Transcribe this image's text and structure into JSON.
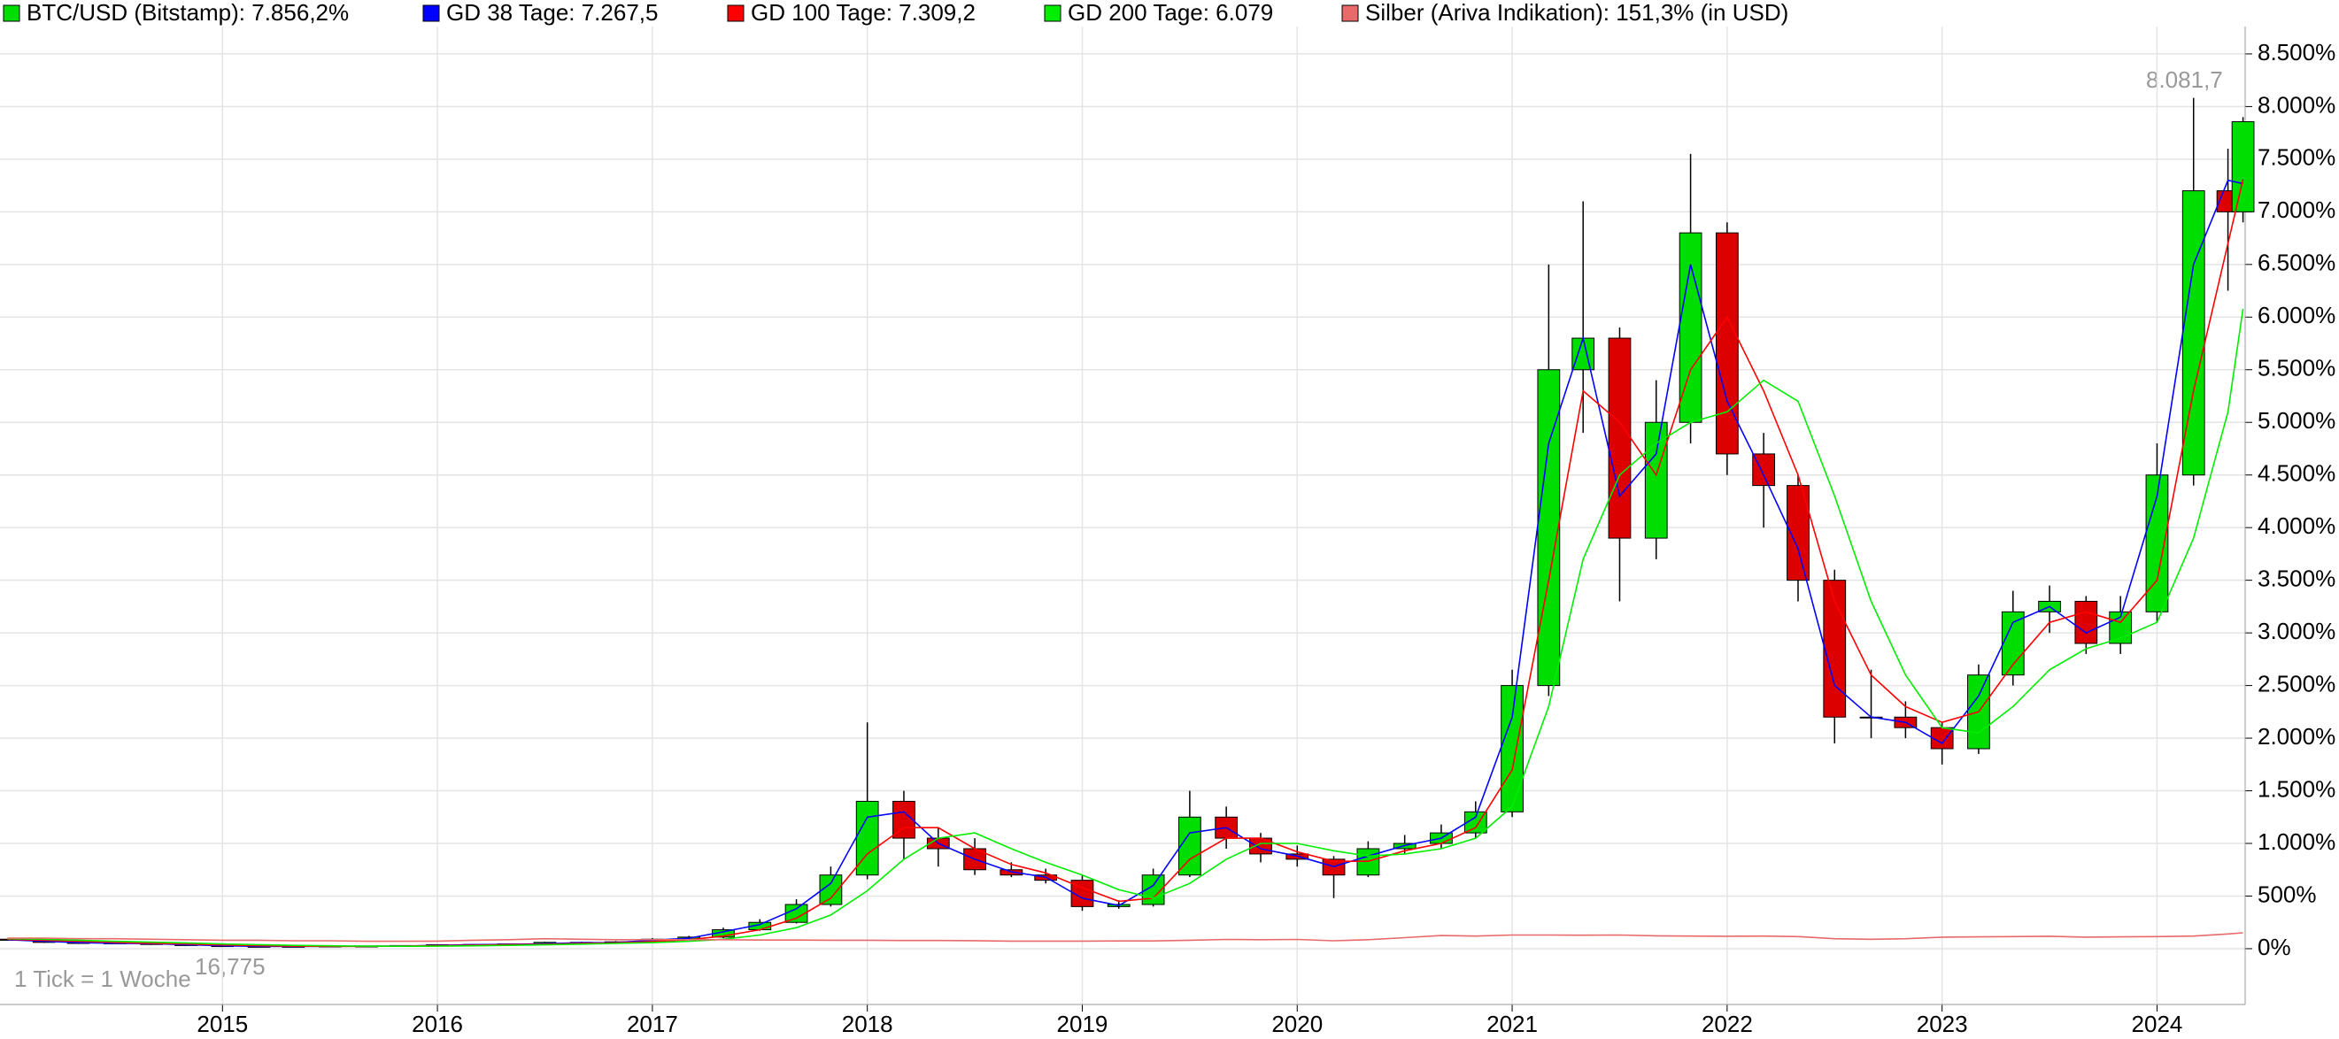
{
  "chart_data": {
    "type": "candlestick",
    "annotations": [
      "8.081,7",
      "16,775",
      "1 Tick = 1 Woche"
    ],
    "x": [
      2014,
      2014.17,
      2014.33,
      2014.5,
      2014.67,
      2014.83,
      2015,
      2015.17,
      2015.33,
      2015.5,
      2015.67,
      2015.83,
      2016,
      2016.17,
      2016.33,
      2016.5,
      2016.67,
      2016.83,
      2017,
      2017.17,
      2017.33,
      2017.5,
      2017.67,
      2017.83,
      2018,
      2018.17,
      2018.33,
      2018.5,
      2018.67,
      2018.83,
      2019,
      2019.17,
      2019.33,
      2019.5,
      2019.67,
      2019.83,
      2020,
      2020.17,
      2020.33,
      2020.5,
      2020.67,
      2020.83,
      2021,
      2021.17,
      2021.33,
      2021.5,
      2021.67,
      2021.83,
      2022,
      2022.17,
      2022.33,
      2022.5,
      2022.67,
      2022.83,
      2023,
      2023.17,
      2023.33,
      2023.5,
      2023.67,
      2023.83,
      2024,
      2024.17,
      2024.33,
      2024.4
    ],
    "candles": {
      "name": "BTC/USD (Bitstamp): 7.856,2%",
      "color": "#00dd00",
      "down_color": "#dd0000",
      "open": [
        90,
        80,
        60,
        50,
        55,
        40,
        30,
        20,
        22,
        20,
        25,
        22,
        30,
        38,
        40,
        45,
        60,
        55,
        65,
        90,
        110,
        180,
        250,
        420,
        700,
        1400,
        1050,
        950,
        750,
        700,
        650,
        400,
        420,
        700,
        1250,
        1050,
        900,
        850,
        700,
        950,
        1000,
        1100,
        1300,
        2500,
        5500,
        5800,
        3900,
        5000,
        6800,
        4700,
        4400,
        3500,
        2200,
        2200,
        2100,
        1900,
        2600,
        3200,
        3300,
        2900,
        3200,
        4500,
        7200,
        7000
      ],
      "high": [
        95,
        88,
        66,
        60,
        60,
        44,
        33,
        24,
        24,
        28,
        28,
        33,
        42,
        44,
        50,
        66,
        66,
        72,
        100,
        122,
        200,
        280,
        470,
        780,
        2150,
        1500,
        1150,
        1050,
        820,
        760,
        700,
        460,
        760,
        1500,
        1350,
        1100,
        980,
        880,
        1020,
        1080,
        1180,
        1400,
        2650,
        6500,
        7100,
        5900,
        5400,
        7550,
        6900,
        4900,
        4500,
        3600,
        2650,
        2350,
        2150,
        2700,
        3400,
        3450,
        3350,
        3350,
        4800,
        8081.7,
        7600,
        7900
      ],
      "low": [
        75,
        55,
        45,
        45,
        36,
        27,
        17,
        18,
        18,
        19,
        20,
        21,
        28,
        36,
        38,
        43,
        52,
        52,
        62,
        85,
        100,
        170,
        240,
        400,
        660,
        850,
        780,
        700,
        680,
        620,
        360,
        380,
        400,
        680,
        950,
        820,
        780,
        480,
        680,
        900,
        950,
        1050,
        1250,
        2400,
        4900,
        3300,
        3700,
        4800,
        4500,
        4000,
        3300,
        1950,
        2000,
        2000,
        1750,
        1850,
        2500,
        3000,
        2800,
        2800,
        3100,
        4400,
        6250,
        6900
      ],
      "close": [
        80,
        60,
        50,
        55,
        40,
        30,
        20,
        22,
        20,
        25,
        22,
        30,
        38,
        40,
        45,
        60,
        55,
        65,
        90,
        110,
        180,
        250,
        420,
        700,
        1400,
        1050,
        950,
        750,
        700,
        650,
        400,
        420,
        700,
        1250,
        1050,
        900,
        850,
        700,
        950,
        1000,
        1100,
        1300,
        2500,
        5500,
        5800,
        3900,
        5000,
        6800,
        4700,
        4400,
        3500,
        2200,
        2200,
        2100,
        1900,
        2600,
        3200,
        3300,
        2900,
        3200,
        4500,
        7200,
        7000,
        7856.2
      ]
    },
    "series": [
      {
        "name": "GD 38 Tage: 7.267,5",
        "color": "#0000ff",
        "values": [
          85,
          70,
          58,
          52,
          48,
          38,
          28,
          22,
          21,
          22,
          23,
          25,
          32,
          38,
          41,
          47,
          57,
          58,
          80,
          100,
          160,
          230,
          380,
          620,
          1250,
          1300,
          1000,
          850,
          730,
          680,
          480,
          410,
          600,
          1100,
          1150,
          950,
          880,
          780,
          880,
          980,
          1050,
          1250,
          2200,
          4800,
          5800,
          4300,
          4700,
          6500,
          5200,
          4500,
          3800,
          2500,
          2200,
          2150,
          1950,
          2400,
          3100,
          3250,
          3000,
          3150,
          4300,
          6500,
          7300,
          7267.5
        ]
      },
      {
        "name": "GD 100 Tage: 7.309,2",
        "color": "#ff0000",
        "values": [
          90,
          80,
          70,
          60,
          52,
          45,
          36,
          28,
          24,
          22,
          22,
          24,
          28,
          33,
          38,
          42,
          50,
          55,
          68,
          85,
          120,
          180,
          290,
          480,
          900,
          1150,
          1150,
          950,
          800,
          720,
          580,
          450,
          480,
          850,
          1050,
          1050,
          920,
          830,
          830,
          930,
          1000,
          1150,
          1700,
          3500,
          5300,
          5000,
          4500,
          5500,
          6000,
          5300,
          4500,
          3300,
          2600,
          2300,
          2150,
          2250,
          2700,
          3100,
          3200,
          3100,
          3500,
          5300,
          6700,
          7309.2
        ]
      },
      {
        "name": "GD 200 Tage: 6.079",
        "color": "#00ee00",
        "values": [
          95,
          90,
          80,
          70,
          62,
          55,
          45,
          38,
          32,
          27,
          24,
          23,
          24,
          27,
          32,
          37,
          43,
          50,
          58,
          70,
          90,
          130,
          200,
          320,
          550,
          850,
          1050,
          1100,
          950,
          820,
          700,
          560,
          480,
          620,
          850,
          1000,
          1000,
          930,
          880,
          900,
          950,
          1050,
          1350,
          2300,
          3700,
          4500,
          4800,
          5000,
          5100,
          5400,
          5200,
          4300,
          3300,
          2600,
          2100,
          2050,
          2300,
          2650,
          2850,
          2950,
          3100,
          3900,
          5100,
          6079
        ]
      },
      {
        "name": "Silber (Ariva Indikation): 151,3% (in USD)",
        "color": "#e86a6a",
        "values": [
          100,
          100,
          95,
          95,
          90,
          85,
          80,
          80,
          75,
          75,
          70,
          70,
          72,
          80,
          85,
          95,
          90,
          85,
          85,
          85,
          85,
          82,
          82,
          80,
          80,
          78,
          78,
          76,
          72,
          72,
          72,
          74,
          74,
          80,
          88,
          85,
          88,
          75,
          85,
          105,
          125,
          120,
          130,
          130,
          128,
          130,
          122,
          120,
          118,
          120,
          115,
          95,
          90,
          95,
          110,
          112,
          115,
          118,
          110,
          112,
          115,
          120,
          140,
          151.3
        ]
      }
    ],
    "xlim": [
      2013.965,
      2024.41
    ],
    "xticks": [
      2015,
      2016,
      2017,
      2018,
      2019,
      2020,
      2021,
      2022,
      2023,
      2024
    ],
    "ylim": [
      -530,
      8760
    ],
    "yticks": [
      {
        "value": 0,
        "label": "0%"
      },
      {
        "value": 500,
        "label": "500%"
      },
      {
        "value": 1000,
        "label": "1.000%"
      },
      {
        "value": 1500,
        "label": "1.500%"
      },
      {
        "value": 2000,
        "label": "2.000%"
      },
      {
        "value": 2500,
        "label": "2.500%"
      },
      {
        "value": 3000,
        "label": "3.000%"
      },
      {
        "value": 3500,
        "label": "3.500%"
      },
      {
        "value": 4000,
        "label": "4.000%"
      },
      {
        "value": 4500,
        "label": "4.500%"
      },
      {
        "value": 5000,
        "label": "5.000%"
      },
      {
        "value": 5500,
        "label": "5.500%"
      },
      {
        "value": 6000,
        "label": "6.000%"
      },
      {
        "value": 6500,
        "label": "6.500%"
      },
      {
        "value": 7000,
        "label": "7.000%"
      },
      {
        "value": 7500,
        "label": "7.500%"
      },
      {
        "value": 8000,
        "label": "8.000%"
      },
      {
        "value": 8500,
        "label": "8.500%"
      }
    ],
    "grid": true
  }
}
